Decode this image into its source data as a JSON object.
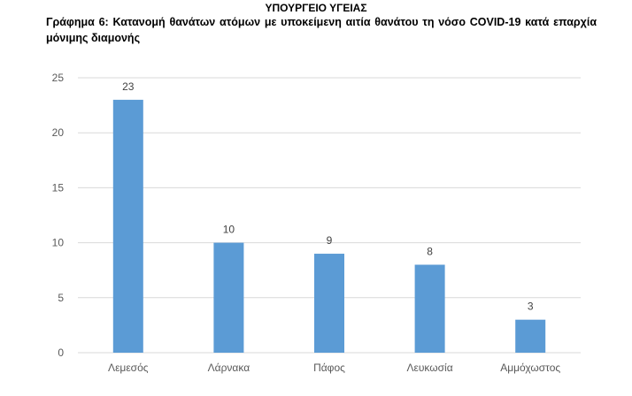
{
  "header": {
    "ministry": "ΥΠΟΥΡΓΕΙΟ ΥΓΕΙΑΣ",
    "title": "Γράφημα 6: Κατανομή θανάτων ατόμων με υποκείμενη αιτία θανάτου τη νόσο COVID-19 κατά επαρχία μόνιμης διαμονής"
  },
  "chart_data": {
    "type": "bar",
    "title": "",
    "xlabel": "",
    "ylabel": "",
    "categories": [
      "Λεμεσός",
      "Λάρνακα",
      "Πάφος",
      "Λευκωσία",
      "Αμμόχωστος"
    ],
    "values": [
      23,
      10,
      9,
      8,
      3
    ],
    "ylim": [
      0,
      25
    ],
    "yticks": [
      0,
      5,
      10,
      15,
      20,
      25
    ],
    "grid": true,
    "legend": "none",
    "bar_color": "#5B9BD5",
    "grid_color": "#D9D9D9"
  }
}
